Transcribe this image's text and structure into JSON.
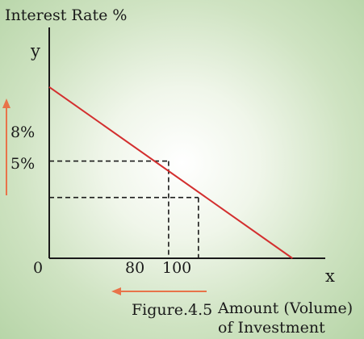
{
  "chart_data": {
    "type": "line",
    "ylabel": "Interest Rate %",
    "xlabel": "Amount (Volume) of Investment",
    "y_axis_letter": "y",
    "x_axis_letter": "x",
    "origin_label": "0",
    "caption": "Figure.4.5",
    "x_ticks": [
      {
        "value": 80,
        "label": "80"
      },
      {
        "value": 100,
        "label": "100"
      }
    ],
    "y_ticks": [
      {
        "value": 8,
        "label": "8%"
      },
      {
        "value": 5,
        "label": "5%"
      }
    ],
    "series": [
      {
        "points": [
          {
            "x": 0,
            "y": 14.1
          },
          {
            "x": 80,
            "y": 8
          },
          {
            "x": 100,
            "y": 5
          },
          {
            "x": 163,
            "y": 0
          }
        ]
      }
    ],
    "reference_lines": [
      {
        "x": 80,
        "y": 8
      },
      {
        "x": 100,
        "y": 5
      }
    ],
    "xlim": [
      0,
      185
    ],
    "ylim": [
      0,
      19
    ],
    "grid": false,
    "colors": {
      "demand_line": "#d32f2f",
      "arrows": "#e8734a",
      "axes": "#1a1a1a"
    }
  }
}
